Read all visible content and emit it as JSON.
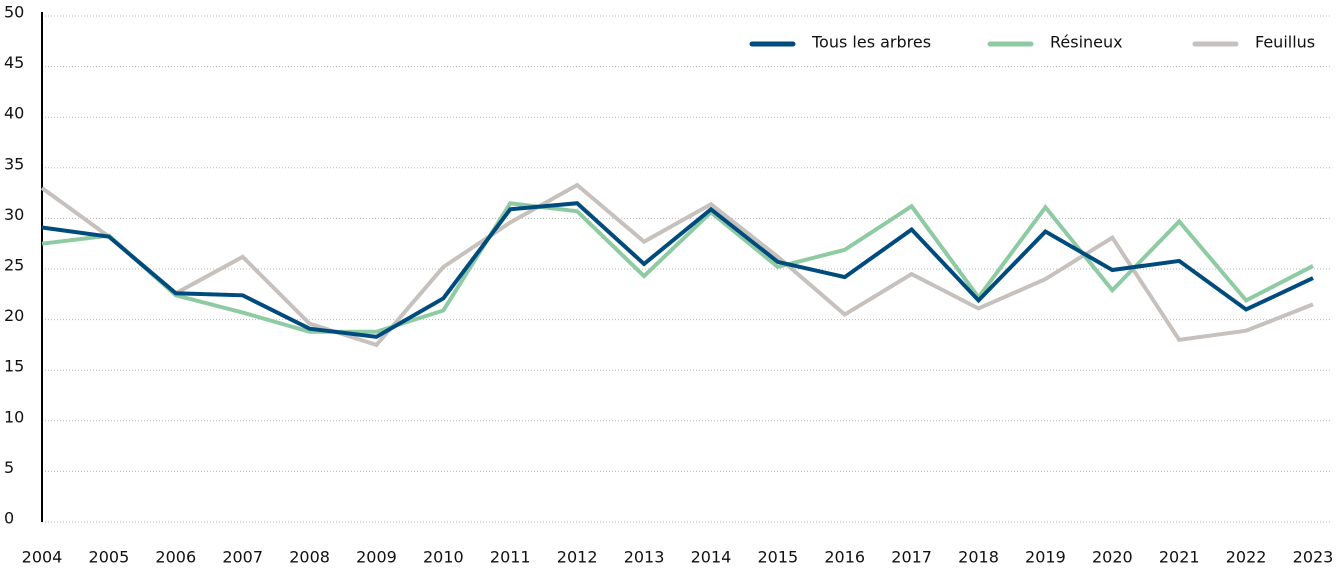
{
  "chart_data": {
    "type": "line",
    "categories": [
      "2004",
      "2005",
      "2006",
      "2007",
      "2008",
      "2009",
      "2010",
      "2011",
      "2012",
      "2013",
      "2014",
      "2015",
      "2016",
      "2017",
      "2018",
      "2019",
      "2020",
      "2021",
      "2022",
      "2023"
    ],
    "series": [
      {
        "name": "Tous les arbres",
        "color": "#004b7d",
        "values": [
          29.1,
          28.2,
          22.6,
          22.4,
          19.1,
          18.3,
          22.1,
          30.9,
          31.5,
          25.5,
          30.9,
          25.7,
          24.2,
          28.9,
          21.9,
          28.7,
          24.9,
          25.8,
          21.0,
          24.1
        ]
      },
      {
        "name": "Résineux",
        "color": "#8fcba2",
        "values": [
          27.5,
          28.3,
          22.4,
          20.7,
          18.8,
          18.8,
          20.9,
          31.5,
          30.7,
          24.3,
          30.6,
          25.2,
          26.9,
          31.2,
          22.2,
          31.1,
          22.9,
          29.7,
          21.9,
          25.3
        ]
      },
      {
        "name": "Feuillus",
        "color": "#c6c1bd",
        "values": [
          33.0,
          28.2,
          22.6,
          26.2,
          19.6,
          17.5,
          25.2,
          29.6,
          33.3,
          27.7,
          31.4,
          26.2,
          20.5,
          24.5,
          21.1,
          24.0,
          28.1,
          18.0,
          18.9,
          21.5
        ]
      }
    ],
    "ylim": [
      0,
      50
    ],
    "yticks": [
      0,
      5,
      10,
      15,
      20,
      25,
      30,
      35,
      40,
      45,
      50
    ],
    "grid": true,
    "legend": "top-right"
  }
}
